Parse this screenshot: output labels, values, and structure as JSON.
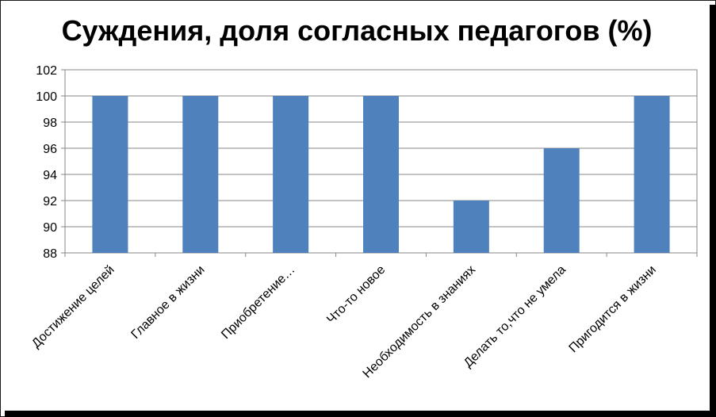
{
  "chart_data": {
    "type": "bar",
    "title": "Суждения, доля согласных педагогов (%)",
    "xlabel": "",
    "ylabel": "",
    "categories": [
      "Достижение целей",
      "Главное в жизни",
      "Приобретение…",
      "Что-то новое",
      "Необходимость в знаниях",
      "Делать то,что не умела",
      "Пригодится в жизни"
    ],
    "values": [
      100,
      100,
      100,
      100,
      92,
      96,
      100
    ],
    "ylim": [
      88,
      102
    ],
    "yticks": [
      88,
      90,
      92,
      94,
      96,
      98,
      100,
      102
    ],
    "grid": true,
    "legend": "none",
    "bar_color": "#4F81BD"
  }
}
